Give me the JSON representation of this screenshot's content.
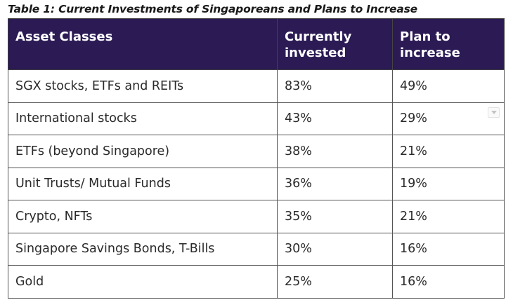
{
  "caption": "Table 1: Current Investments of Singaporeans and Plans to Increase",
  "table": {
    "headers": [
      "Asset Classes",
      "Currently invested",
      "Plan to increase"
    ],
    "rows": [
      [
        "SGX stocks, ETFs and REITs",
        "83%",
        "49%"
      ],
      [
        "International stocks",
        "43%",
        "29%"
      ],
      [
        "ETFs (beyond Singapore)",
        "38%",
        "21%"
      ],
      [
        "Unit Trusts/ Mutual Funds",
        "36%",
        "19%"
      ],
      [
        "Crypto, NFTs",
        "35%",
        "21%"
      ],
      [
        "Singapore Savings Bonds, T-Bills",
        "30%",
        "16%"
      ],
      [
        "Gold",
        "25%",
        "16%"
      ]
    ]
  },
  "colors": {
    "header_background": "#2b1a54",
    "header_text": "#ffffff"
  },
  "icons": {
    "scroll_indicator": "chevron-down-icon"
  }
}
